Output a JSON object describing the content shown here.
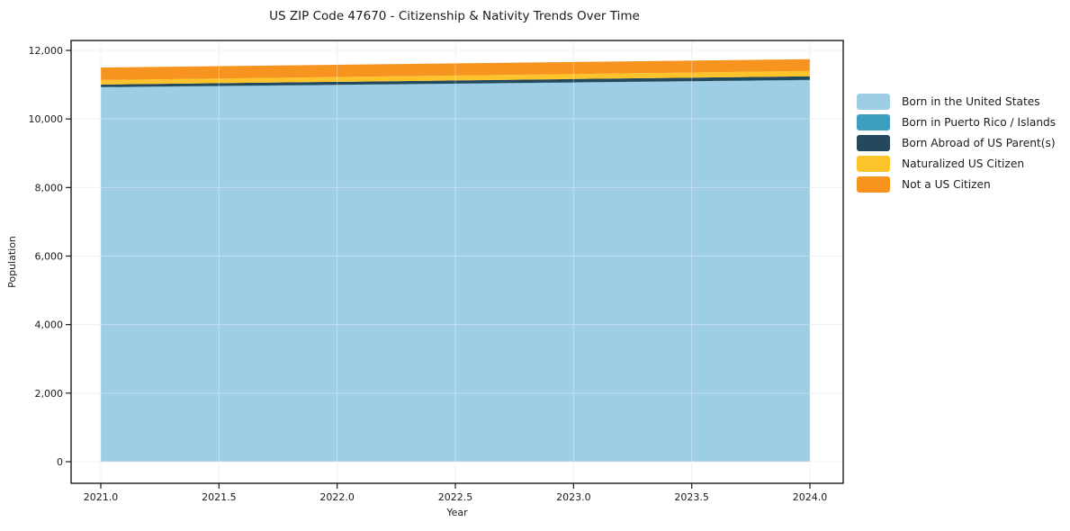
{
  "title": "US ZIP Code 47670 - Citizenship & Nativity Trends Over Time",
  "chart_data": {
    "type": "area",
    "stacked": true,
    "title": "US ZIP Code 47670 - Citizenship & Nativity Trends Over Time",
    "xlabel": "Year",
    "ylabel": "Population",
    "x": [
      2021,
      2022,
      2023,
      2024
    ],
    "series": [
      {
        "name": "Born in the United States",
        "color": "#9ecee6",
        "values": [
          10920,
          10990,
          11060,
          11130
        ]
      },
      {
        "name": "Born in Puerto Rico / Islands",
        "color": "#3d9fbd",
        "values": [
          8,
          8,
          9,
          10
        ]
      },
      {
        "name": "Born Abroad of US Parent(s)",
        "color": "#24485c",
        "values": [
          78,
          86,
          95,
          104
        ]
      },
      {
        "name": "Naturalized US Citizen",
        "color": "#fcc32a",
        "values": [
          130,
          140,
          148,
          158
        ]
      },
      {
        "name": "Not a US Citizen",
        "color": "#f7941f",
        "values": [
          365,
          357,
          349,
          341
        ]
      }
    ],
    "xticks": [
      2021.0,
      2021.5,
      2022.0,
      2022.5,
      2023.0,
      2023.5,
      2024.0
    ],
    "yticks": [
      0,
      2000,
      4000,
      6000,
      8000,
      10000,
      12000
    ],
    "ylim": [
      0,
      12000
    ],
    "grid": true,
    "legend_position": "right",
    "colors": {
      "grid": "#eaeaea",
      "spine": "#1a1a1a",
      "background": "#ffffff"
    }
  }
}
